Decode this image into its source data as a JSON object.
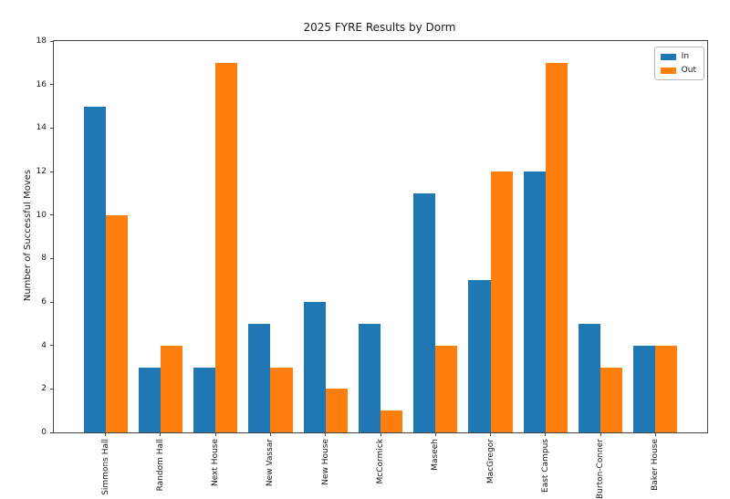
{
  "chart_data": {
    "type": "bar",
    "title": "2025 FYRE Results by Dorm",
    "xlabel": "",
    "ylabel": "Number of Successful Moves",
    "categories": [
      "Simmons Hall",
      "Random Hall",
      "Next House",
      "New Vassar",
      "New House",
      "McCormick",
      "Maseeh",
      "MacGregor",
      "East Campus",
      "Burton-Conner",
      "Baker House"
    ],
    "series": [
      {
        "name": "In",
        "color": "#1f77b4",
        "values": [
          15,
          3,
          3,
          5,
          6,
          5,
          11,
          7,
          12,
          5,
          4
        ]
      },
      {
        "name": "Out",
        "color": "#ff7f0e",
        "values": [
          10,
          4,
          17,
          3,
          2,
          1,
          4,
          12,
          17,
          3,
          4
        ]
      }
    ],
    "ylim": [
      0,
      18
    ],
    "yticks": [
      0,
      2,
      4,
      6,
      8,
      10,
      12,
      14,
      16,
      18
    ],
    "bar_width": 0.4,
    "grid": false,
    "legend": {
      "position": "upper right",
      "entries": [
        "In",
        "Out"
      ]
    }
  }
}
